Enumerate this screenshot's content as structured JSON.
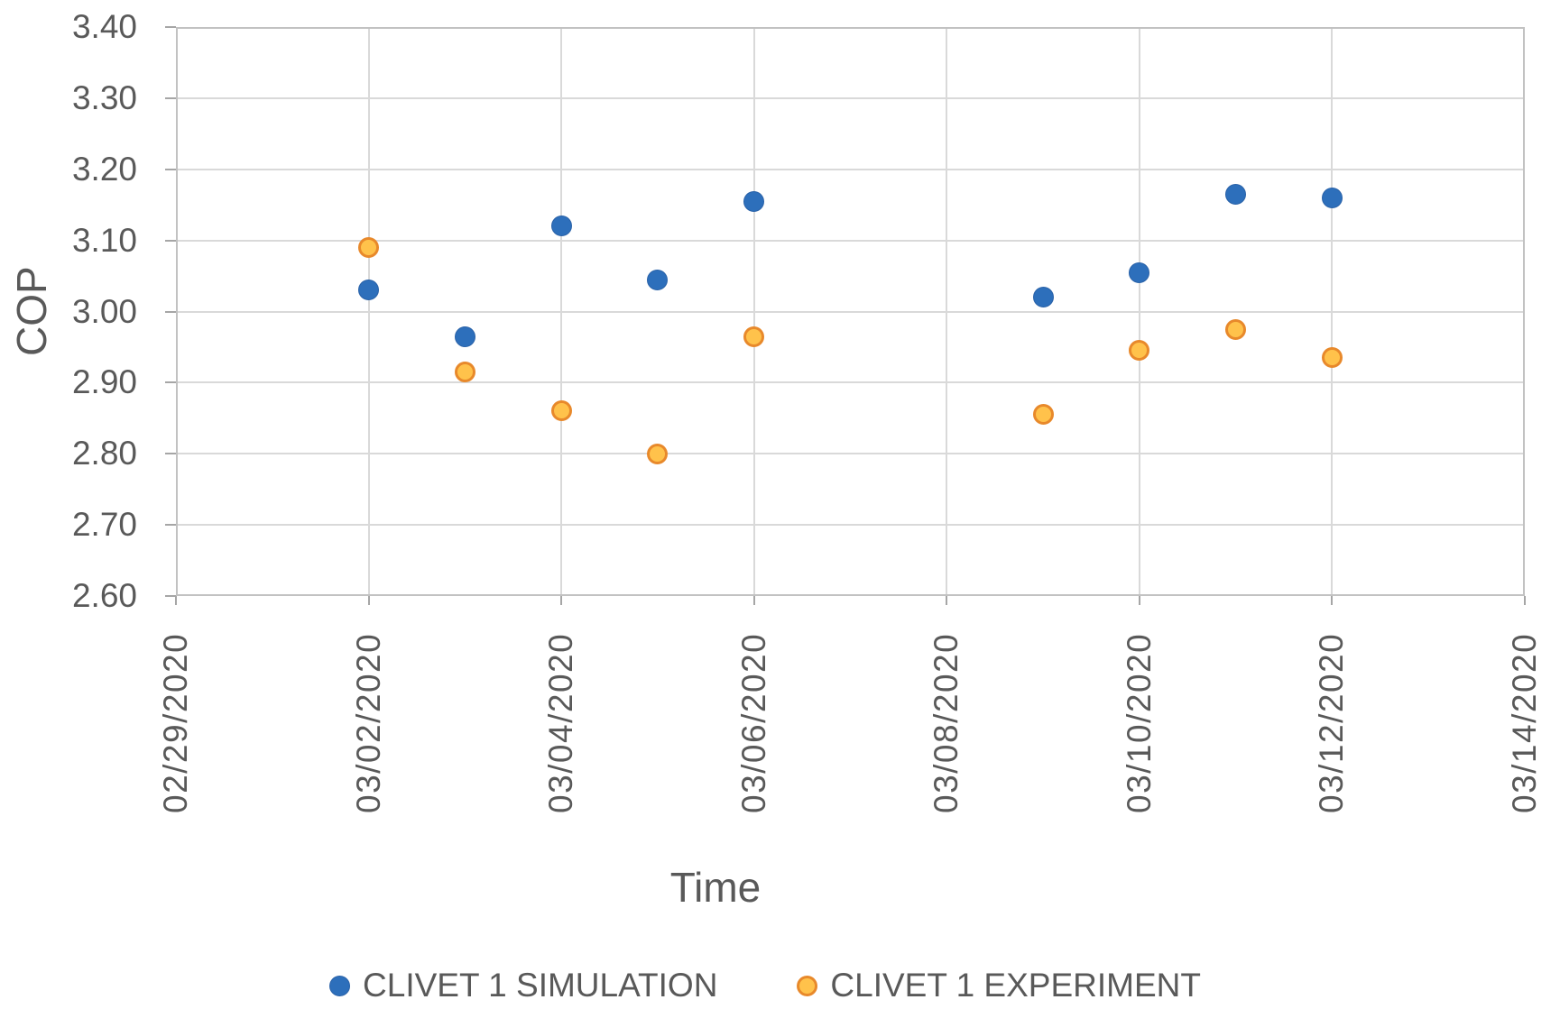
{
  "chart_data": {
    "type": "scatter",
    "title": "",
    "xlabel": "Time",
    "ylabel": "COP",
    "grid": true,
    "legend_position": "bottom",
    "x_axis": {
      "tick_labels": [
        "02/29/2020",
        "03/02/2020",
        "03/04/2020",
        "03/06/2020",
        "03/08/2020",
        "03/10/2020",
        "03/12/2020",
        "03/14/2020"
      ],
      "tick_days": [
        0,
        2,
        4,
        6,
        8,
        10,
        12,
        14
      ],
      "range_days": [
        0,
        14
      ]
    },
    "y_axis": {
      "tick_labels": [
        "3.40",
        "3.30",
        "3.20",
        "3.10",
        "3.00",
        "2.90",
        "2.80",
        "2.70",
        "2.60"
      ],
      "tick_values": [
        3.4,
        3.3,
        3.2,
        3.1,
        3.0,
        2.9,
        2.8,
        2.7,
        2.6
      ],
      "range": [
        2.6,
        3.4
      ]
    },
    "series": [
      {
        "name": "CLIVET 1 SIMULATION",
        "marker": "filled-circle",
        "color": "#2d6fbb",
        "points": [
          {
            "date": "03/02/2020",
            "day": 2,
            "cop": 3.03
          },
          {
            "date": "03/03/2020",
            "day": 3,
            "cop": 2.965
          },
          {
            "date": "03/04/2020",
            "day": 4,
            "cop": 3.12
          },
          {
            "date": "03/05/2020",
            "day": 5,
            "cop": 3.045
          },
          {
            "date": "03/06/2020",
            "day": 6,
            "cop": 3.155
          },
          {
            "date": "03/09/2020",
            "day": 9,
            "cop": 3.02
          },
          {
            "date": "03/10/2020",
            "day": 10,
            "cop": 3.055
          },
          {
            "date": "03/11/2020",
            "day": 11,
            "cop": 3.165
          },
          {
            "date": "03/12/2020",
            "day": 12,
            "cop": 3.16
          }
        ]
      },
      {
        "name": "CLIVET 1 EXPERIMENT",
        "marker": "open-circle",
        "fill": "#ffc24b",
        "stroke": "#e8892b",
        "points": [
          {
            "date": "03/02/2020",
            "day": 2,
            "cop": 3.09
          },
          {
            "date": "03/03/2020",
            "day": 3,
            "cop": 2.915
          },
          {
            "date": "03/04/2020",
            "day": 4,
            "cop": 2.86
          },
          {
            "date": "03/05/2020",
            "day": 5,
            "cop": 2.8
          },
          {
            "date": "03/06/2020",
            "day": 6,
            "cop": 2.965
          },
          {
            "date": "03/09/2020",
            "day": 9,
            "cop": 2.855
          },
          {
            "date": "03/10/2020",
            "day": 10,
            "cop": 2.945
          },
          {
            "date": "03/11/2020",
            "day": 11,
            "cop": 2.975
          },
          {
            "date": "03/12/2020",
            "day": 12,
            "cop": 2.935
          }
        ]
      }
    ],
    "colors": {
      "gridline": "#d9d9d9",
      "plot_border": "#c2c2c2",
      "tick_mark": "#a6a6a6",
      "text": "#595959",
      "simulation_blue": "#2d6fbb",
      "experiment_orange_fill": "#ffc24b",
      "experiment_orange_stroke": "#e8892b"
    }
  }
}
